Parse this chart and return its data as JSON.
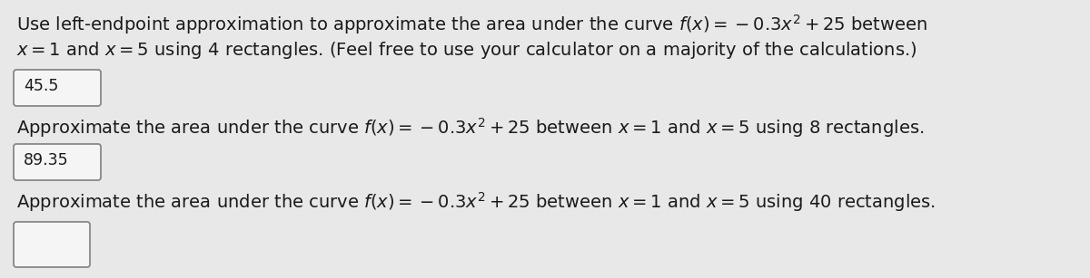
{
  "background_color": "#e8e8e8",
  "text_color": "#1a1a1a",
  "line1": "Use left-endpoint approximation to approximate the area under the curve $f(x) = -0.3x^2 + 25$ between",
  "line2": "$x = 1$ and $x = 5$ using 4 rectangles. (Feel free to use your calculator on a majority of the calculations.)",
  "answer1": "45.5",
  "line3": "Approximate the area under the curve $f(x) = -0.3x^2 + 25$ between $x = 1$ and $x = 5$ using 8 rectangles.",
  "answer2": "89.35",
  "line4": "Approximate the area under the curve $f(x) = -0.3x^2 + 25$ between $x = 1$ and $x = 5$ using 40 rectangles.",
  "answer3": "",
  "font_size_main": 14.0,
  "font_size_answer": 12.5,
  "box_edge_color": "#888888",
  "box_face_color": "#f5f5f5"
}
